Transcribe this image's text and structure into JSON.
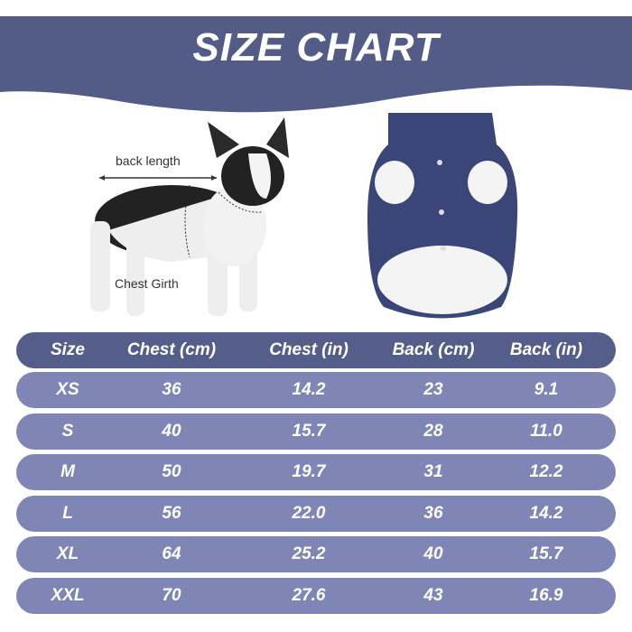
{
  "title": "SIZE CHART",
  "labels": {
    "back_length": "back length",
    "chest_girth": "Chest Girth"
  },
  "colors": {
    "banner": "#535b87",
    "header_row": "#555d8a",
    "data_row": "#7f86b5"
  },
  "table": {
    "headers": [
      "Size",
      "Chest (cm)",
      "Chest (in)",
      "Back (cm)",
      "Back (in)"
    ],
    "rows": [
      [
        "XS",
        "36",
        "14.2",
        "23",
        "9.1"
      ],
      [
        "S",
        "40",
        "15.7",
        "28",
        "11.0"
      ],
      [
        "M",
        "50",
        "19.7",
        "31",
        "12.2"
      ],
      [
        "L",
        "56",
        "22.0",
        "36",
        "14.2"
      ],
      [
        "XL",
        "64",
        "25.2",
        "40",
        "15.7"
      ],
      [
        "XXL",
        "70",
        "27.6",
        "43",
        "16.9"
      ]
    ]
  }
}
